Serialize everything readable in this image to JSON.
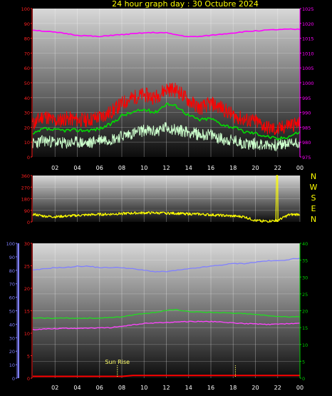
{
  "title": "24 hour graph day : 30 Octubre 2024",
  "colors": {
    "background": "#000000",
    "left_axis_red": "#ff2020",
    "pressure_magenta": "#ff00ff",
    "gust_red": "#ff0000",
    "avg_green": "#00dd00",
    "min_lightgreen": "#ccffcc",
    "direction_yellow": "#ffff00",
    "compass_yellow": "#ffff00",
    "humidity_blue": "#8080ff",
    "temp_magenta": "#ff44ff",
    "temp_green": "#22dd22",
    "rain_red": "#ff0000",
    "right_axis_green": "#00cc00",
    "sunrise_yellow": "#ffff66"
  },
  "compass": [
    "N",
    "W",
    "S",
    "E",
    "N"
  ],
  "sun_rise_label": "Sun Rise",
  "chart_data": [
    {
      "type": "line",
      "x_ticks": [
        "02",
        "04",
        "06",
        "08",
        "10",
        "12",
        "14",
        "16",
        "18",
        "20",
        "22",
        "00"
      ],
      "y_left_ticks": [
        "0",
        "10",
        "20",
        "30",
        "40",
        "50",
        "60",
        "70",
        "80",
        "90",
        "100"
      ],
      "y_right_ticks": [
        "975",
        "980",
        "985",
        "990",
        "995",
        "1000",
        "1005",
        "1010",
        "1015",
        "1020",
        "1025"
      ],
      "ylim_left": [
        0,
        100
      ],
      "ylim_right": [
        975,
        1025
      ],
      "x_hours": [
        0,
        1,
        2,
        3,
        4,
        5,
        6,
        7,
        8,
        9,
        10,
        11,
        12,
        13,
        14,
        15,
        16,
        17,
        18,
        19,
        20,
        21,
        22,
        23,
        24
      ],
      "series": [
        {
          "role": "pressure",
          "axis": "right",
          "color": "#ff00ff",
          "values": [
            1017.8,
            1017.4,
            1017.0,
            1016.6,
            1016.0,
            1015.8,
            1015.5,
            1016.0,
            1016.2,
            1016.5,
            1016.8,
            1016.9,
            1016.8,
            1016.1,
            1015.5,
            1015.6,
            1016.0,
            1016.4,
            1016.8,
            1017.2,
            1017.5,
            1017.7,
            1017.9,
            1018.0,
            1018.0
          ]
        },
        {
          "role": "gust",
          "axis": "left",
          "color": "#ff0000",
          "values": [
            22,
            28,
            24,
            26,
            25,
            25,
            27,
            30,
            36,
            40,
            42,
            40,
            46,
            45,
            38,
            33,
            36,
            33,
            28,
            25,
            24,
            20,
            18,
            22,
            22
          ]
        },
        {
          "role": "average",
          "axis": "left",
          "color": "#00dd00",
          "values": [
            15,
            19,
            18,
            18,
            18,
            18,
            19,
            22,
            28,
            30,
            32,
            30,
            36,
            34,
            28,
            25,
            26,
            22,
            20,
            17,
            16,
            14,
            12,
            14,
            17
          ]
        },
        {
          "role": "minimum",
          "axis": "left",
          "color": "#ccffcc",
          "values": [
            9,
            11,
            10,
            9,
            10,
            9,
            12,
            12,
            14,
            16,
            18,
            17,
            20,
            18,
            17,
            15,
            15,
            12,
            11,
            9,
            9,
            8,
            8,
            9,
            10
          ]
        }
      ]
    },
    {
      "type": "line",
      "x_ticks": [],
      "y_ticks": [
        "0",
        "90",
        "180",
        "270",
        "360"
      ],
      "ylim": [
        0,
        360
      ],
      "x_hours": [
        0,
        1,
        2,
        3,
        4,
        5,
        6,
        7,
        8,
        9,
        10,
        11,
        12,
        13,
        14,
        15,
        16,
        17,
        18,
        19,
        20,
        21,
        22,
        23,
        24
      ],
      "series": [
        {
          "role": "direction",
          "color": "#ffff00",
          "values": [
            60,
            45,
            40,
            45,
            50,
            55,
            58,
            60,
            65,
            68,
            70,
            70,
            68,
            66,
            62,
            60,
            55,
            50,
            45,
            40,
            10,
            5,
            12,
            55,
            60
          ]
        }
      ],
      "spike": {
        "hour": 21.9,
        "value": 360
      }
    },
    {
      "type": "line",
      "x_ticks": [
        "02",
        "04",
        "06",
        "08",
        "10",
        "12",
        "14",
        "16",
        "18",
        "20",
        "22",
        "00"
      ],
      "y_blue_ticks": [
        "0",
        "10",
        "20",
        "30",
        "40",
        "50",
        "60",
        "70",
        "80",
        "90",
        "100"
      ],
      "y_red_ticks": [
        "0",
        "5",
        "10",
        "15",
        "20",
        "25",
        "30"
      ],
      "y_right_ticks": [
        "0",
        "5",
        "10",
        "15",
        "20",
        "25",
        "30",
        "35",
        "40"
      ],
      "ylim_blue": [
        0,
        100
      ],
      "ylim_red": [
        0,
        30
      ],
      "ylim_right": [
        0,
        40
      ],
      "x_hours": [
        0,
        1,
        2,
        3,
        4,
        5,
        6,
        7,
        8,
        9,
        10,
        11,
        12,
        13,
        14,
        15,
        16,
        17,
        18,
        19,
        20,
        21,
        22,
        23,
        24
      ],
      "series": [
        {
          "role": "humidity",
          "axis": "blue",
          "color": "#8080ff",
          "values": [
            80,
            81,
            82,
            82,
            83,
            83,
            82,
            82,
            82,
            81,
            80,
            79,
            79,
            80,
            81,
            82,
            83,
            84,
            85,
            85,
            86,
            87,
            87,
            88,
            89
          ]
        },
        {
          "role": "temperature_green",
          "axis": "right",
          "color": "#22dd22",
          "values": [
            17.8,
            17.8,
            17.8,
            17.8,
            17.8,
            17.8,
            17.8,
            18.0,
            18.2,
            18.8,
            19.2,
            19.5,
            20.1,
            20.3,
            19.7,
            19.6,
            19.5,
            19.4,
            19.3,
            19.1,
            19.0,
            18.6,
            18.3,
            18.2,
            18.3
          ]
        },
        {
          "role": "temperature_magenta",
          "axis": "right",
          "color": "#ff44ff",
          "values": [
            14.4,
            14.6,
            14.7,
            14.8,
            14.8,
            14.8,
            14.9,
            15.0,
            15.4,
            15.8,
            16.2,
            16.4,
            16.5,
            16.7,
            16.8,
            16.8,
            16.8,
            16.6,
            16.4,
            16.2,
            16.1,
            15.9,
            16.0,
            16.2,
            16.3
          ]
        },
        {
          "role": "rain",
          "axis": "red",
          "color": "#ff0000",
          "values": [
            0.4,
            0.4,
            0.4,
            0.4,
            0.4,
            0.4,
            0.4,
            0.4,
            0.4,
            0.6,
            0.6,
            0.6,
            0.6,
            0.6,
            0.6,
            0.6,
            0.6,
            0.6,
            0.6,
            0.6,
            0.6,
            0.6,
            0.6,
            0.6,
            0.6
          ]
        }
      ],
      "markers": [
        {
          "role": "sunrise",
          "hour": 7.6
        },
        {
          "role": "sunset",
          "hour": 18.2
        }
      ]
    }
  ]
}
